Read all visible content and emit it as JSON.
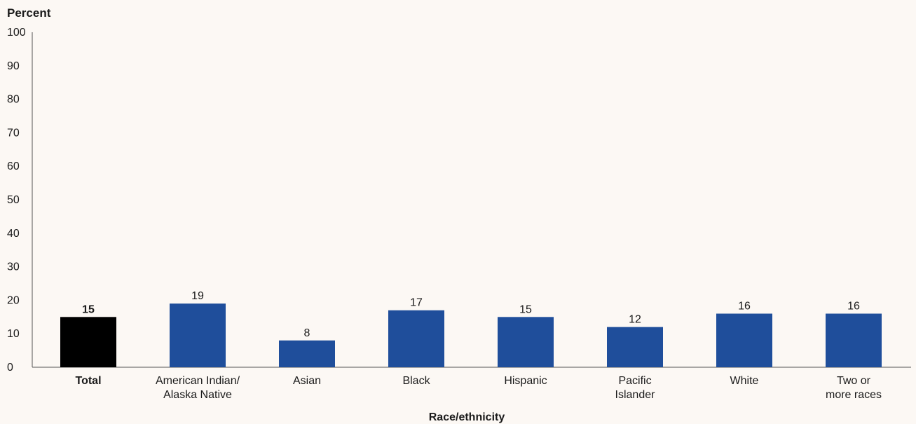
{
  "chart_data": {
    "type": "bar",
    "ylabel": "Percent",
    "xlabel": "Race/ethnicity",
    "ylim": [
      0,
      100
    ],
    "yticks": [
      "0",
      "10",
      "20",
      "30",
      "40",
      "50",
      "60",
      "70",
      "80",
      "90",
      "100"
    ],
    "categories": [
      [
        "Total"
      ],
      [
        "American Indian/",
        "Alaska Native"
      ],
      [
        "Asian"
      ],
      [
        "Black"
      ],
      [
        "Hispanic"
      ],
      [
        "Pacific",
        "Islander"
      ],
      [
        "White"
      ],
      [
        "Two or",
        "more races"
      ]
    ],
    "values": [
      15,
      19,
      8,
      17,
      15,
      12,
      16,
      16
    ],
    "value_labels": [
      "15",
      "19",
      "8",
      "17",
      "15",
      "12",
      "16",
      "16"
    ],
    "highlight_index": 0,
    "colors": {
      "highlight": "#000000",
      "bar": "#1f4e9b",
      "axis": "#555555",
      "background": "#fcf8f4"
    }
  }
}
